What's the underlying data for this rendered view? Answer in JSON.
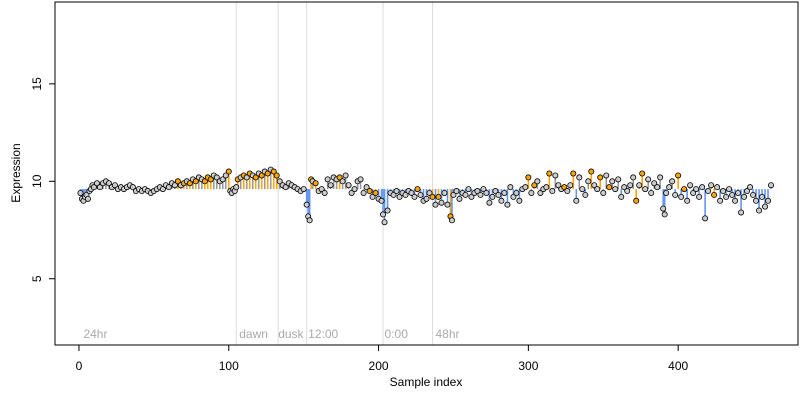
{
  "chart_data": {
    "type": "scatter",
    "title": "",
    "xlabel": "Sample index",
    "ylabel": "Expression",
    "xlim": [
      -16,
      480
    ],
    "ylim": [
      1.6,
      19.2
    ],
    "x_ticks": [
      0,
      100,
      200,
      300,
      400
    ],
    "y_ticks": [
      5,
      10,
      15
    ],
    "grid": false,
    "legend": "none",
    "colors": {
      "point_fill_default": "#cccccc",
      "point_fill_highlight": "#ffa500",
      "point_stroke": "#000000",
      "stem_blue": "#6495ed",
      "stem_orange": "#ffa500",
      "stem_gray": "#999999",
      "vline": "#dddddd",
      "annotation_text": "#aaaaaa"
    },
    "baseline": 9.6,
    "vlines": [
      105,
      133,
      152,
      203,
      236
    ],
    "annotations": [
      {
        "x": 3,
        "text": "24hr"
      },
      {
        "x": 107,
        "text": "dawn"
      },
      {
        "x": 133,
        "text": "dusk"
      },
      {
        "x": 153,
        "text": "12:00"
      },
      {
        "x": 204,
        "text": "0:00"
      },
      {
        "x": 238,
        "text": "48hr"
      }
    ],
    "series": [
      {
        "points": [
          [
            1,
            9.4
          ],
          [
            2,
            9.1
          ],
          [
            3,
            9.0
          ],
          [
            4,
            9.2
          ],
          [
            5,
            9.3
          ],
          [
            6,
            9.1
          ],
          [
            7,
            9.5
          ],
          [
            8,
            9.6
          ],
          [
            9,
            9.8
          ],
          [
            10,
            9.7
          ],
          [
            12,
            9.9
          ],
          [
            14,
            9.7
          ],
          [
            16,
            9.9
          ],
          [
            18,
            10.0
          ],
          [
            20,
            9.9
          ],
          [
            22,
            9.7
          ],
          [
            24,
            9.8
          ],
          [
            26,
            9.6
          ],
          [
            28,
            9.7
          ],
          [
            30,
            9.6
          ],
          [
            32,
            9.7
          ],
          [
            34,
            9.8
          ],
          [
            36,
            9.7
          ],
          [
            38,
            9.5
          ],
          [
            40,
            9.6
          ],
          [
            42,
            9.5
          ],
          [
            44,
            9.6
          ],
          [
            46,
            9.5
          ],
          [
            48,
            9.4
          ],
          [
            50,
            9.5
          ],
          [
            52,
            9.6
          ],
          [
            54,
            9.7
          ],
          [
            56,
            9.6
          ],
          [
            58,
            9.8
          ],
          [
            60,
            9.7
          ],
          [
            62,
            9.9
          ],
          [
            64,
            9.8
          ],
          [
            66,
            10.0
          ],
          [
            68,
            9.8
          ],
          [
            70,
            9.9
          ],
          [
            72,
            10.0
          ],
          [
            74,
            9.9
          ],
          [
            76,
            10.1
          ],
          [
            78,
            10.0
          ],
          [
            80,
            10.2
          ],
          [
            82,
            10.1
          ],
          [
            84,
            10.0
          ],
          [
            86,
            10.2
          ],
          [
            88,
            10.1
          ],
          [
            90,
            10.3
          ],
          [
            92,
            10.2
          ],
          [
            94,
            10.0
          ],
          [
            96,
            10.1
          ],
          [
            98,
            10.3
          ],
          [
            100,
            10.5
          ],
          [
            101,
            9.5
          ],
          [
            102,
            9.4
          ],
          [
            103,
            9.6
          ],
          [
            104,
            9.5
          ],
          [
            105,
            9.7
          ],
          [
            106,
            10.1
          ],
          [
            108,
            10.2
          ],
          [
            110,
            10.3
          ],
          [
            112,
            10.2
          ],
          [
            114,
            10.4
          ],
          [
            116,
            10.3
          ],
          [
            118,
            10.2
          ],
          [
            120,
            10.4
          ],
          [
            122,
            10.3
          ],
          [
            124,
            10.5
          ],
          [
            126,
            10.4
          ],
          [
            128,
            10.6
          ],
          [
            130,
            10.5
          ],
          [
            132,
            10.3
          ],
          [
            134,
            10.0
          ],
          [
            136,
            9.8
          ],
          [
            138,
            9.7
          ],
          [
            140,
            9.9
          ],
          [
            142,
            9.8
          ],
          [
            144,
            9.7
          ],
          [
            146,
            9.6
          ],
          [
            148,
            9.5
          ],
          [
            150,
            9.6
          ],
          [
            152,
            8.8
          ],
          [
            153,
            8.2
          ],
          [
            154,
            8.0
          ],
          [
            155,
            10.1
          ],
          [
            156,
            10.0
          ],
          [
            158,
            9.9
          ],
          [
            160,
            9.5
          ],
          [
            162,
            9.6
          ],
          [
            164,
            9.4
          ],
          [
            166,
            10.1
          ],
          [
            168,
            9.8
          ],
          [
            170,
            10.2
          ],
          [
            172,
            10.1
          ],
          [
            174,
            10.2
          ],
          [
            176,
            10.0
          ],
          [
            178,
            10.3
          ],
          [
            180,
            9.8
          ],
          [
            182,
            9.4
          ],
          [
            184,
            9.6
          ],
          [
            186,
            10.0
          ],
          [
            188,
            10.1
          ],
          [
            190,
            9.4
          ],
          [
            192,
            9.7
          ],
          [
            194,
            9.5
          ],
          [
            196,
            9.2
          ],
          [
            198,
            9.4
          ],
          [
            200,
            9.1
          ],
          [
            202,
            9.0
          ],
          [
            203,
            8.3
          ],
          [
            204,
            7.9
          ],
          [
            206,
            8.5
          ],
          [
            208,
            9.4
          ],
          [
            210,
            9.3
          ],
          [
            212,
            9.5
          ],
          [
            214,
            9.2
          ],
          [
            216,
            9.4
          ],
          [
            218,
            9.3
          ],
          [
            220,
            9.5
          ],
          [
            222,
            9.4
          ],
          [
            224,
            9.2
          ],
          [
            226,
            9.6
          ],
          [
            228,
            9.3
          ],
          [
            230,
            9.0
          ],
          [
            232,
            9.1
          ],
          [
            234,
            9.4
          ],
          [
            236,
            9.2
          ],
          [
            238,
            8.8
          ],
          [
            240,
            9.2
          ],
          [
            242,
            8.9
          ],
          [
            244,
            9.4
          ],
          [
            246,
            8.8
          ],
          [
            248,
            8.2
          ],
          [
            249,
            8.0
          ],
          [
            250,
            9.3
          ],
          [
            252,
            9.5
          ],
          [
            254,
            9.1
          ],
          [
            256,
            9.4
          ],
          [
            258,
            9.3
          ],
          [
            260,
            9.6
          ],
          [
            262,
            9.2
          ],
          [
            264,
            9.4
          ],
          [
            266,
            9.5
          ],
          [
            268,
            9.3
          ],
          [
            270,
            9.6
          ],
          [
            272,
            9.4
          ],
          [
            274,
            8.9
          ],
          [
            276,
            9.2
          ],
          [
            278,
            9.5
          ],
          [
            280,
            9.3
          ],
          [
            282,
            9.0
          ],
          [
            284,
            9.4
          ],
          [
            286,
            8.8
          ],
          [
            288,
            9.7
          ],
          [
            290,
            9.2
          ],
          [
            292,
            9.4
          ],
          [
            294,
            9.0
          ],
          [
            296,
            9.6
          ],
          [
            298,
            9.7
          ],
          [
            300,
            10.2
          ],
          [
            302,
            9.4
          ],
          [
            304,
            9.8
          ],
          [
            306,
            10.0
          ],
          [
            308,
            9.4
          ],
          [
            310,
            9.6
          ],
          [
            312,
            9.7
          ],
          [
            314,
            10.4
          ],
          [
            316,
            9.5
          ],
          [
            318,
            10.3
          ],
          [
            320,
            9.8
          ],
          [
            322,
            9.6
          ],
          [
            324,
            9.7
          ],
          [
            326,
            9.5
          ],
          [
            328,
            9.8
          ],
          [
            330,
            10.4
          ],
          [
            332,
            9.0
          ],
          [
            334,
            10.2
          ],
          [
            336,
            9.6
          ],
          [
            338,
            9.3
          ],
          [
            340,
            10.0
          ],
          [
            342,
            10.5
          ],
          [
            344,
            9.8
          ],
          [
            346,
            9.6
          ],
          [
            348,
            10.2
          ],
          [
            350,
            9.4
          ],
          [
            352,
            10.3
          ],
          [
            354,
            9.7
          ],
          [
            356,
            10.0
          ],
          [
            358,
            9.6
          ],
          [
            360,
            10.1
          ],
          [
            362,
            9.2
          ],
          [
            364,
            9.7
          ],
          [
            366,
            9.5
          ],
          [
            368,
            9.8
          ],
          [
            370,
            10.2
          ],
          [
            372,
            9.0
          ],
          [
            374,
            9.8
          ],
          [
            376,
            10.4
          ],
          [
            378,
            9.6
          ],
          [
            380,
            10.1
          ],
          [
            382,
            9.4
          ],
          [
            384,
            9.9
          ],
          [
            386,
            9.7
          ],
          [
            388,
            10.2
          ],
          [
            390,
            8.6
          ],
          [
            391,
            8.3
          ],
          [
            392,
            9.4
          ],
          [
            394,
            9.7
          ],
          [
            396,
            10.0
          ],
          [
            398,
            9.3
          ],
          [
            400,
            10.3
          ],
          [
            402,
            9.2
          ],
          [
            404,
            9.6
          ],
          [
            406,
            9.0
          ],
          [
            408,
            9.8
          ],
          [
            410,
            9.4
          ],
          [
            412,
            9.6
          ],
          [
            414,
            9.2
          ],
          [
            416,
            9.7
          ],
          [
            418,
            8.1
          ],
          [
            420,
            9.5
          ],
          [
            422,
            9.8
          ],
          [
            424,
            9.3
          ],
          [
            426,
            9.7
          ],
          [
            428,
            9.0
          ],
          [
            430,
            9.5
          ],
          [
            432,
            9.2
          ],
          [
            434,
            9.6
          ],
          [
            436,
            9.3
          ],
          [
            438,
            9.0
          ],
          [
            440,
            9.4
          ],
          [
            442,
            8.4
          ],
          [
            444,
            9.2
          ],
          [
            446,
            9.5
          ],
          [
            448,
            9.7
          ],
          [
            450,
            9.3
          ],
          [
            452,
            9.0
          ],
          [
            454,
            8.5
          ],
          [
            456,
            9.2
          ],
          [
            458,
            8.7
          ],
          [
            460,
            9.0
          ],
          [
            462,
            9.8
          ]
        ],
        "highlighted_x": [
          66,
          70,
          74,
          78,
          84,
          86,
          88,
          100,
          106,
          110,
          114,
          118,
          122,
          126,
          130,
          132,
          155,
          158,
          174,
          194,
          198,
          226,
          236,
          240,
          248,
          300,
          304,
          314,
          324,
          330,
          342,
          348,
          354,
          372,
          376,
          400,
          404,
          424
        ]
      }
    ]
  }
}
